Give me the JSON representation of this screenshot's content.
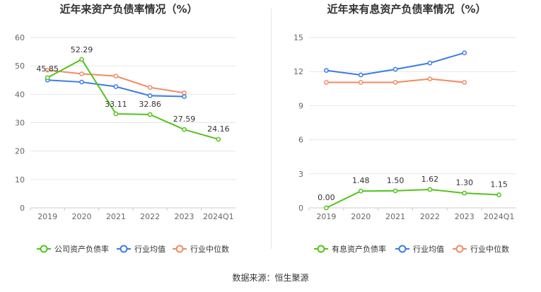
{
  "colors": {
    "company": "#52c41a",
    "industry_avg": "#3b7be8",
    "industry_median": "#f48a62",
    "grid": "#e6e6e6",
    "axis_text": "#666666"
  },
  "chart_data": [
    {
      "type": "line",
      "title": "近年来资产负债率情况（%）",
      "categories": [
        "2019",
        "2020",
        "2021",
        "2022",
        "2023",
        "2024Q1"
      ],
      "ylim": [
        0,
        60
      ],
      "yticks": [
        0,
        10,
        20,
        30,
        40,
        50,
        60
      ],
      "grid": true,
      "legend_position": "bottom",
      "series": [
        {
          "name": "公司资产负债率",
          "color_key": "company",
          "values": [
            45.85,
            52.29,
            33.11,
            32.86,
            27.59,
            24.16
          ],
          "labels": [
            "45.85",
            "52.29",
            "33.11",
            "32.86",
            "27.59",
            "24.16"
          ]
        },
        {
          "name": "行业均值",
          "color_key": "industry_avg",
          "values": [
            45.0,
            44.3,
            42.7,
            39.5,
            39.2,
            null
          ]
        },
        {
          "name": "行业中位数",
          "color_key": "industry_median",
          "values": [
            48.5,
            47.2,
            46.4,
            42.4,
            40.5,
            null
          ]
        }
      ]
    },
    {
      "type": "line",
      "title": "近年来有息资产负债率情况（%）",
      "categories": [
        "2019",
        "2020",
        "2021",
        "2022",
        "2023",
        "2024Q1"
      ],
      "ylim": [
        0,
        15
      ],
      "yticks": [
        0,
        3,
        6,
        9,
        12,
        15
      ],
      "grid": true,
      "legend_position": "bottom",
      "series": [
        {
          "name": "有息资产负债率",
          "color_key": "company",
          "values": [
            0.0,
            1.48,
            1.5,
            1.62,
            1.3,
            1.15
          ],
          "labels": [
            "0.00",
            "1.48",
            "1.50",
            "1.62",
            "1.30",
            "1.15"
          ]
        },
        {
          "name": "行业均值",
          "color_key": "industry_avg",
          "values": [
            12.1,
            11.7,
            12.2,
            12.75,
            13.65,
            null
          ]
        },
        {
          "name": "行业中位数",
          "color_key": "industry_median",
          "values": [
            11.05,
            11.05,
            11.05,
            11.35,
            11.05,
            null
          ]
        }
      ]
    }
  ],
  "footer": {
    "source": "数据来源：恒生聚源"
  }
}
